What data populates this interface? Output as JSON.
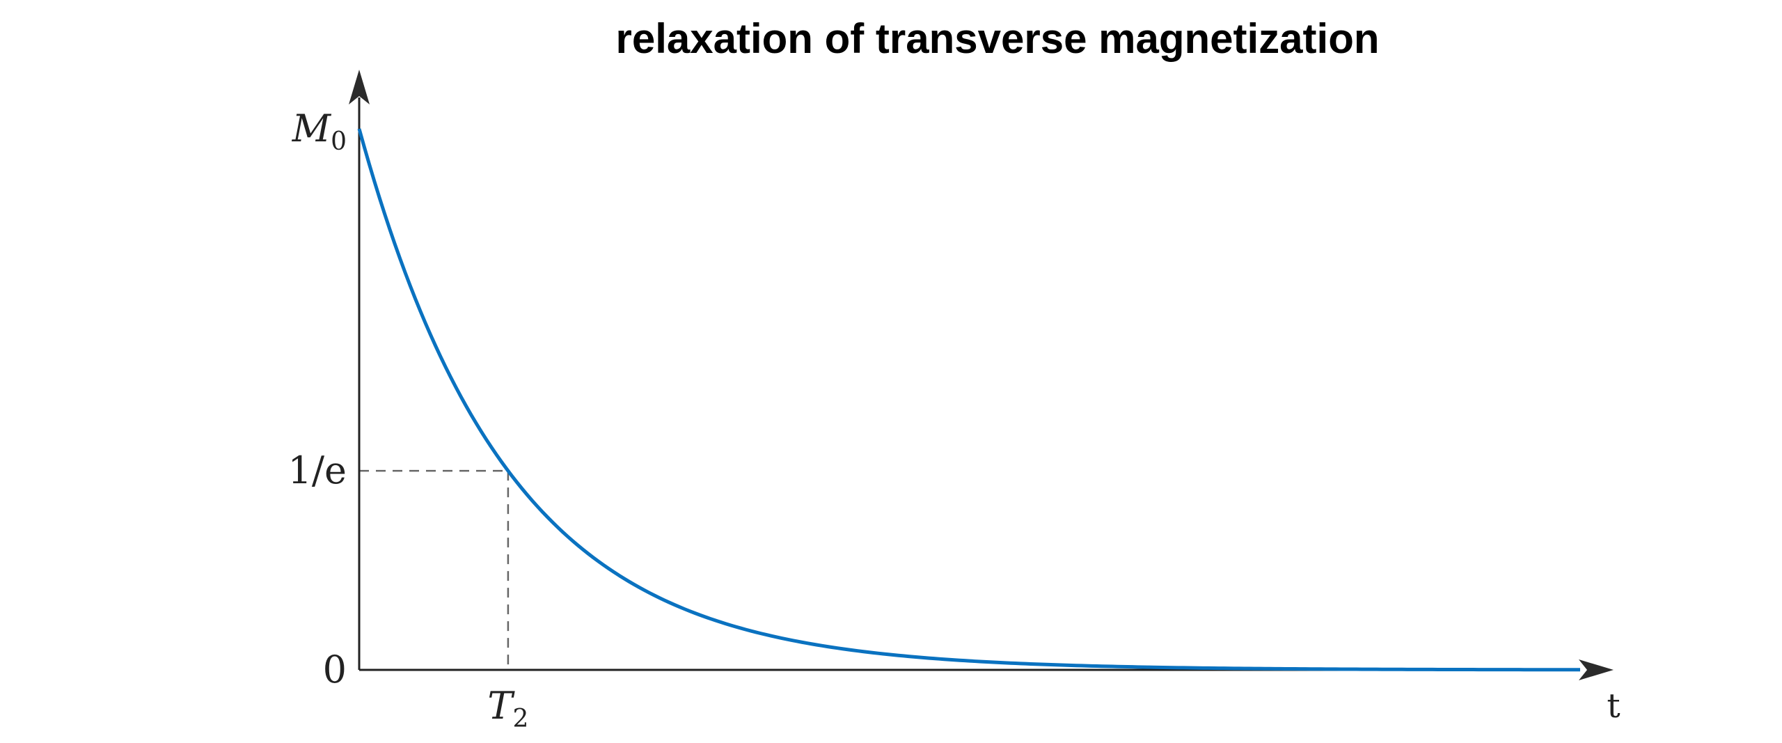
{
  "chart_data": {
    "type": "line",
    "title": "relaxation of transverse magnetization",
    "xlabel": "t",
    "ylabel": "",
    "x_ticks": [
      {
        "value": 1,
        "label_main": "T",
        "label_sub": "2"
      }
    ],
    "y_ticks": [
      {
        "value": 0,
        "label_main": "0",
        "label_sub": ""
      },
      {
        "value": 0.3679,
        "label_main": "1/e",
        "label_sub": ""
      },
      {
        "value": 1,
        "label_main": "M",
        "label_sub": "0"
      }
    ],
    "xlim": [
      0,
      8.2
    ],
    "ylim": [
      0,
      1.0
    ],
    "series": [
      {
        "function": "M0 * exp(-t / T2)",
        "x_range": [
          0,
          8.2
        ],
        "samples": 240
      }
    ],
    "reference_lines": [
      {
        "x": 1,
        "y": 0.3679,
        "style": "dashed"
      }
    ],
    "grid": false,
    "legend": "none",
    "colors": {
      "curve": "#0a72c0",
      "axes": "#222222",
      "dashed": "#666666",
      "text": "#222222"
    }
  }
}
